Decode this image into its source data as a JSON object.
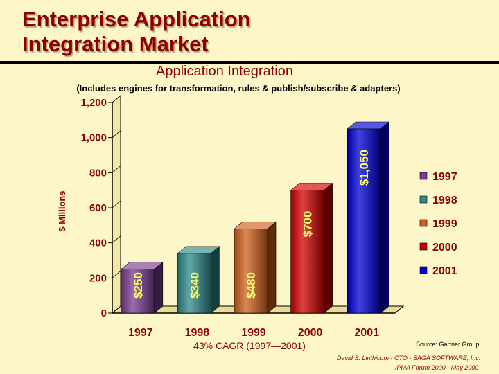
{
  "header": {
    "title_line1": "Enterprise Application",
    "title_line2": "Integration Market"
  },
  "chart_data": {
    "type": "bar",
    "title": "Application Integration",
    "subtitle": "(Includes engines for transformation, rules & publish/subscribe & adapters)",
    "ylabel": "$ Millions",
    "xlabel": "",
    "categories": [
      "1997",
      "1998",
      "1999",
      "2000",
      "2001"
    ],
    "values": [
      250,
      340,
      480,
      700,
      1050
    ],
    "data_labels": [
      "$250",
      "$340",
      "$480",
      "$700",
      "$1,050"
    ],
    "colors": [
      "#7a3b8f",
      "#2e8b8b",
      "#d0601c",
      "#d10000",
      "#0000d8"
    ],
    "ylim": [
      0,
      1200
    ],
    "yticks": [
      0,
      200,
      400,
      600,
      800,
      1000,
      1200
    ],
    "ytick_labels": [
      "0",
      "200",
      "400",
      "600",
      "800",
      "1,000",
      "1,200"
    ],
    "legend": {
      "placement": "right",
      "entries": [
        "1997",
        "1998",
        "1999",
        "2000",
        "2001"
      ]
    },
    "grid": false,
    "annotation": "43% CAGR (1997—2001)"
  },
  "footer": {
    "source": "Source:  Gartner Group",
    "author": "David S. Linthicum - CTO - SAGA SOFTWARE, Inc.",
    "event": "IPMA Forum 2000 - May 2000"
  },
  "colors": {
    "title": "#8b0000",
    "background": "#fdf6c9",
    "axis_text": "#8b0000"
  }
}
